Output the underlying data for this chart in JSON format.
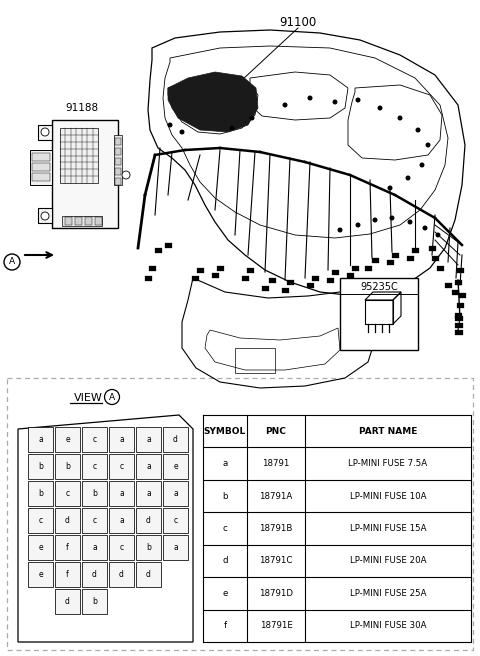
{
  "bg_color": "#ffffff",
  "part_number_91100": "91100",
  "part_number_91188": "91188",
  "part_number_95235C": "95235C",
  "circle_A_label": "A",
  "view_label": "VIEW",
  "table_headers": [
    "SYMBOL",
    "PNC",
    "PART NAME"
  ],
  "table_rows": [
    [
      "a",
      "18791",
      "LP-MINI FUSE 7.5A"
    ],
    [
      "b",
      "18791A",
      "LP-MINI FUSE 10A"
    ],
    [
      "c",
      "18791B",
      "LP-MINI FUSE 15A"
    ],
    [
      "d",
      "18791C",
      "LP-MINI FUSE 20A"
    ],
    [
      "e",
      "18791D",
      "LP-MINI FUSE 25A"
    ],
    [
      "f",
      "18791E",
      "LP-MINI FUSE 30A"
    ]
  ],
  "fuse_grid": [
    [
      "a",
      "e",
      "c",
      "a",
      "a",
      "d"
    ],
    [
      "b",
      "b",
      "c",
      "c",
      "a",
      "e"
    ],
    [
      "b",
      "c",
      "b",
      "a",
      "a",
      "a"
    ],
    [
      "c",
      "d",
      "c",
      "a",
      "d",
      "c"
    ],
    [
      "e",
      "f",
      "a",
      "c",
      "b",
      "a"
    ],
    [
      "e",
      "f",
      "d",
      "d",
      "d",
      ""
    ],
    [
      "",
      "d",
      "b",
      "",
      "",
      ""
    ]
  ],
  "dash_color": "#aaaaaa",
  "line_color": "#000000"
}
